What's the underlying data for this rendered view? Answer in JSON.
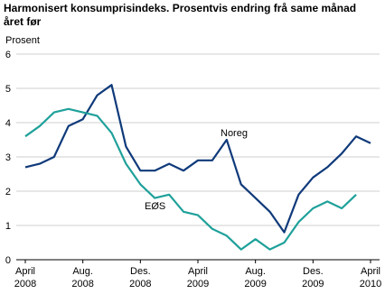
{
  "chart_data": {
    "type": "line",
    "title": "Harmonisert konsumprisindeks. Prosentvis endring frå same månad året før",
    "y_label": "Prosent",
    "categories": [
      "April 2008",
      null,
      null,
      null,
      "Aug. 2008",
      null,
      null,
      null,
      "Des. 2008",
      null,
      null,
      null,
      "April 2009",
      null,
      null,
      null,
      "Aug. 2009",
      null,
      null,
      null,
      "Des. 2009",
      null,
      null,
      null,
      "April 2010"
    ],
    "series": [
      {
        "name": "Noreg",
        "color": "#0f3a7a",
        "values": [
          2.7,
          2.8,
          3.0,
          3.9,
          4.1,
          4.8,
          5.1,
          3.3,
          2.6,
          2.6,
          2.8,
          2.6,
          2.9,
          2.9,
          3.5,
          2.2,
          1.8,
          1.4,
          0.8,
          1.9,
          2.4,
          2.7,
          3.1,
          3.6,
          3.4
        ]
      },
      {
        "name": "EØS",
        "color": "#1fa19a",
        "values": [
          3.6,
          3.9,
          4.3,
          4.4,
          4.3,
          4.2,
          3.7,
          2.8,
          2.2,
          1.8,
          1.9,
          1.4,
          1.3,
          0.9,
          0.7,
          0.3,
          0.6,
          0.3,
          0.5,
          1.1,
          1.5,
          1.7,
          1.5,
          1.9,
          null
        ]
      }
    ],
    "ylim": [
      0,
      6
    ],
    "yticks": [
      0,
      1,
      2,
      3,
      4,
      5,
      6
    ],
    "grid": true
  }
}
